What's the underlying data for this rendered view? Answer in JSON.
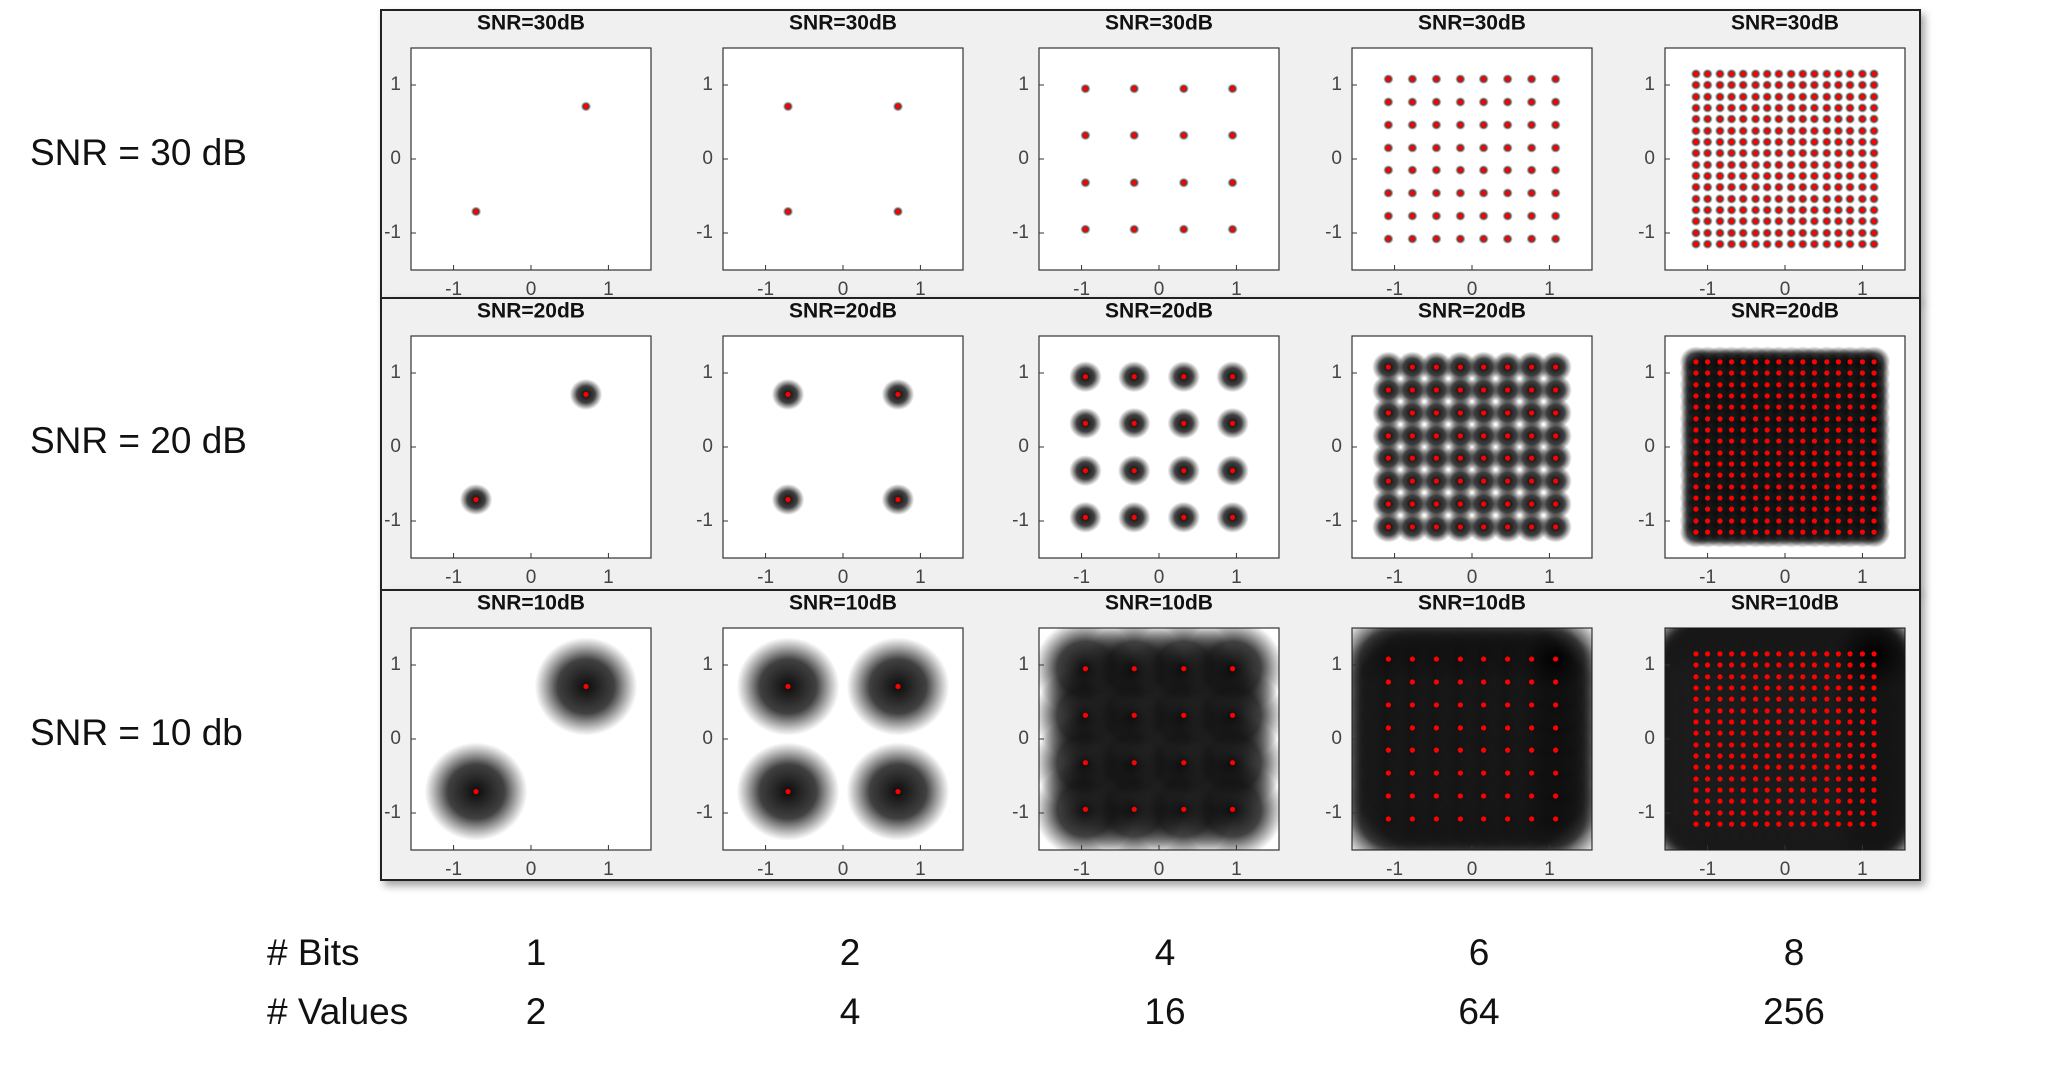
{
  "rows": [
    {
      "label": "SNR = 30 dB",
      "snr_db": 30
    },
    {
      "label": "SNR = 20 dB",
      "snr_db": 20
    },
    {
      "label": "SNR = 10 db",
      "snr_db": 10
    }
  ],
  "chart_data": [
    {
      "type": "scatter",
      "titles": [
        "SNR=30dB",
        "SNR=20dB",
        "SNR=10dB"
      ],
      "x": [
        -0.71,
        0.71
      ],
      "y": [
        -0.71,
        0.71
      ],
      "color": "#ff0000",
      "xlim": [
        -1.55,
        1.55
      ],
      "ylim": [
        -1.5,
        1.5
      ],
      "xticks": [
        -1,
        0,
        1
      ],
      "yticks": [
        -1,
        0,
        1
      ]
    },
    {
      "type": "grid",
      "titles": [
        "SNR=30dB",
        "SNR=20dB",
        "SNR=10dB"
      ],
      "levels": [
        -0.71,
        0.71
      ],
      "color": "#ff0000",
      "xlim": [
        -1.55,
        1.55
      ],
      "ylim": [
        -1.5,
        1.5
      ],
      "xticks": [
        -1,
        0,
        1
      ],
      "yticks": [
        -1,
        0,
        1
      ]
    },
    {
      "type": "grid",
      "titles": [
        "SNR=30dB",
        "SNR=20dB",
        "SNR=10dB"
      ],
      "levels": [
        -0.95,
        -0.32,
        0.32,
        0.95
      ],
      "color": "#ff0000",
      "xlim": [
        -1.55,
        1.55
      ],
      "ylim": [
        -1.5,
        1.5
      ],
      "xticks": [
        -1,
        0,
        1
      ],
      "yticks": [
        -1,
        0,
        1
      ]
    },
    {
      "type": "grid",
      "titles": [
        "SNR=30dB",
        "SNR=20dB",
        "SNR=10dB"
      ],
      "levels": [
        -1.08,
        -0.77,
        -0.46,
        -0.15,
        0.15,
        0.46,
        0.77,
        1.08
      ],
      "color": "#ff0000",
      "xlim": [
        -1.55,
        1.55
      ],
      "ylim": [
        -1.5,
        1.5
      ],
      "xticks": [
        -1,
        0,
        1
      ],
      "yticks": [
        -1,
        0,
        1
      ]
    },
    {
      "type": "grid",
      "titles": [
        "SNR=30dB",
        "SNR=20dB",
        "SNR=10dB"
      ],
      "levels": [
        -1.15,
        -1.0,
        -0.84,
        -0.69,
        -0.54,
        -0.38,
        -0.23,
        -0.08,
        0.08,
        0.23,
        0.38,
        0.54,
        0.69,
        0.84,
        1.0,
        1.15
      ],
      "color": "#ff0000",
      "xlim": [
        -1.55,
        1.55
      ],
      "ylim": [
        -1.5,
        1.5
      ],
      "xticks": [
        -1,
        0,
        1
      ],
      "yticks": [
        -1,
        0,
        1
      ]
    }
  ],
  "table": {
    "rows": [
      {
        "label": "# Bits",
        "values": [
          1,
          2,
          4,
          6,
          8
        ]
      },
      {
        "label": "# Values",
        "values": [
          2,
          4,
          16,
          64,
          256
        ]
      }
    ]
  }
}
